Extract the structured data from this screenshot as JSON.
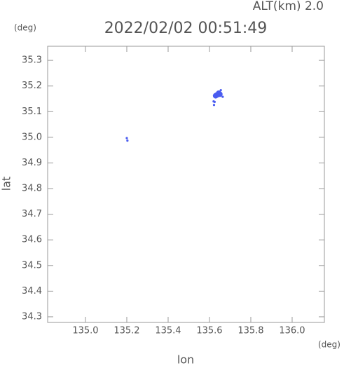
{
  "chart_data": {
    "type": "scatter",
    "corner_label": "ALT(km) 2.0",
    "title": "2022/02/02 00:51:49",
    "y_unit": "(deg)",
    "x_unit": "(deg)",
    "xlabel": "lon",
    "ylabel": "lat",
    "xlim": [
      134.817,
      136.156
    ],
    "ylim": [
      34.278,
      35.355
    ],
    "xticks": [
      {
        "value": 135,
        "label": "135.0"
      },
      135.2,
      135.4,
      135.6,
      135.8,
      {
        "value": 136,
        "label": "136.0"
      }
    ],
    "yticks": [
      34.3,
      34.4,
      34.5,
      34.6,
      34.7,
      34.8,
      34.9,
      {
        "value": 35,
        "label": "35.0"
      },
      35.1,
      35.2,
      35.3
    ],
    "series": [
      {
        "color": "#4a5cf0",
        "x": [
          135.636,
          135.645,
          135.63,
          135.65,
          135.655,
          135.664,
          135.62,
          135.625,
          135.622,
          135.2,
          135.203
        ],
        "y": [
          35.165,
          35.172,
          35.162,
          35.168,
          35.184,
          35.158,
          35.14,
          35.138,
          35.126,
          34.997,
          34.987
        ]
      }
    ]
  }
}
